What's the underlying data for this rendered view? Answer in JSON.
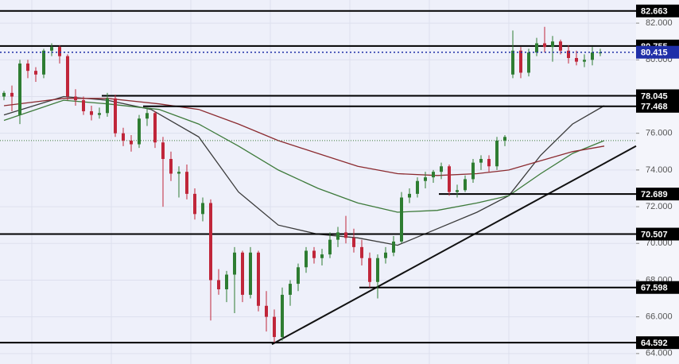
{
  "chart_data": {
    "type": "candlestick",
    "xlim": [
      -0.5,
      79.5
    ],
    "ylim": [
      63.43,
      83.26
    ],
    "yticks": [
      {
        "value": 64,
        "label": "64.000"
      },
      {
        "value": 66,
        "label": "66.000"
      },
      {
        "value": 68,
        "label": "68.000"
      },
      {
        "value": 70,
        "label": "70.000"
      },
      {
        "value": 72,
        "label": "72.000"
      },
      {
        "value": 74,
        "label": "74.000"
      },
      {
        "value": 76,
        "label": "76.000"
      },
      {
        "value": 78,
        "label": "78.000"
      },
      {
        "value": 80,
        "label": "80.000"
      },
      {
        "value": 82,
        "label": "82.000"
      }
    ],
    "grid": true,
    "up_color": "#2e7d32",
    "down_color": "#c0263a",
    "candles": [
      [
        78.0,
        78.3,
        77.8,
        78.2
      ],
      [
        78.2,
        78.6,
        77.2,
        78.0
      ],
      [
        77.0,
        80.0,
        76.5,
        79.8
      ],
      [
        79.8,
        80.0,
        79.0,
        79.4
      ],
      [
        79.4,
        79.6,
        78.8,
        79.2
      ],
      [
        79.2,
        80.6,
        79.0,
        80.5
      ],
      [
        80.5,
        80.9,
        80.2,
        80.7
      ],
      [
        80.7,
        80.8,
        79.8,
        80.2
      ],
      [
        80.2,
        80.3,
        77.8,
        78.0
      ],
      [
        78.0,
        78.4,
        77.5,
        77.8
      ],
      [
        77.8,
        78.0,
        77.0,
        77.2
      ],
      [
        77.2,
        77.5,
        76.7,
        77.0
      ],
      [
        77.0,
        77.4,
        76.8,
        77.1
      ],
      [
        77.1,
        78.2,
        76.9,
        77.9
      ],
      [
        77.9,
        78.1,
        75.8,
        76.0
      ],
      [
        76.0,
        76.3,
        75.3,
        75.6
      ],
      [
        75.6,
        75.9,
        75.0,
        75.4
      ],
      [
        75.4,
        77.0,
        75.2,
        76.8
      ],
      [
        76.8,
        77.4,
        76.4,
        77.1
      ],
      [
        77.1,
        77.2,
        75.2,
        75.5
      ],
      [
        75.5,
        75.8,
        72.0,
        74.6
      ],
      [
        74.6,
        75.0,
        73.4,
        73.8
      ],
      [
        73.8,
        74.2,
        72.5,
        73.9
      ],
      [
        73.9,
        74.3,
        72.4,
        72.7
      ],
      [
        72.7,
        73.0,
        71.3,
        71.6
      ],
      [
        71.6,
        72.5,
        71.2,
        72.2
      ],
      [
        72.2,
        72.4,
        65.8,
        68.0
      ],
      [
        68.0,
        68.6,
        67.2,
        67.5
      ],
      [
        67.5,
        68.5,
        66.8,
        68.3
      ],
      [
        68.3,
        69.8,
        66.2,
        69.5
      ],
      [
        69.5,
        69.6,
        66.8,
        67.2
      ],
      [
        67.2,
        69.8,
        67.0,
        69.5
      ],
      [
        69.5,
        69.6,
        66.3,
        66.6
      ],
      [
        66.6,
        67.4,
        65.2,
        66.0
      ],
      [
        66.0,
        66.4,
        64.6,
        64.9
      ],
      [
        64.9,
        67.6,
        64.7,
        67.2
      ],
      [
        67.2,
        68.0,
        66.6,
        67.8
      ],
      [
        67.8,
        68.9,
        67.4,
        68.7
      ],
      [
        68.7,
        69.8,
        68.4,
        69.6
      ],
      [
        69.6,
        69.8,
        68.9,
        69.2
      ],
      [
        69.2,
        69.7,
        68.8,
        69.4
      ],
      [
        69.4,
        70.6,
        69.2,
        70.2
      ],
      [
        70.2,
        70.9,
        69.8,
        70.6
      ],
      [
        70.6,
        71.5,
        70.0,
        70.3
      ],
      [
        70.3,
        70.8,
        69.5,
        69.8
      ],
      [
        69.8,
        70.2,
        68.8,
        69.2
      ],
      [
        69.2,
        69.5,
        67.6,
        67.9
      ],
      [
        67.9,
        69.4,
        67.0,
        69.2
      ],
      [
        69.2,
        69.8,
        68.9,
        69.5
      ],
      [
        69.5,
        70.4,
        69.3,
        70.1
      ],
      [
        70.1,
        72.8,
        70.0,
        72.5
      ],
      [
        72.5,
        73.0,
        72.2,
        72.7
      ],
      [
        72.7,
        73.6,
        72.5,
        73.4
      ],
      [
        73.4,
        73.9,
        73.0,
        73.6
      ],
      [
        73.6,
        74.0,
        73.3,
        73.9
      ],
      [
        73.9,
        74.4,
        73.5,
        74.2
      ],
      [
        74.2,
        74.3,
        72.6,
        72.8
      ],
      [
        72.8,
        73.2,
        72.5,
        72.9
      ],
      [
        72.9,
        73.7,
        72.8,
        73.5
      ],
      [
        73.5,
        74.6,
        73.3,
        74.4
      ],
      [
        74.4,
        74.8,
        74.0,
        74.6
      ],
      [
        74.6,
        74.8,
        73.9,
        74.2
      ],
      [
        74.2,
        75.8,
        74.0,
        75.6
      ],
      [
        75.6,
        75.9,
        75.3,
        75.8
      ],
      [
        79.2,
        81.6,
        79.0,
        80.5
      ],
      [
        80.5,
        80.7,
        79.0,
        79.3
      ],
      [
        79.3,
        80.6,
        79.1,
        80.4
      ],
      [
        80.4,
        81.2,
        80.2,
        80.9
      ],
      [
        80.9,
        81.8,
        80.4,
        80.7
      ],
      [
        80.7,
        81.3,
        79.9,
        81.0
      ],
      [
        81.0,
        81.1,
        80.3,
        80.5
      ],
      [
        80.5,
        80.8,
        79.8,
        80.1
      ],
      [
        80.1,
        80.5,
        79.7,
        79.9
      ],
      [
        79.9,
        80.3,
        79.6,
        80.0
      ],
      [
        80.0,
        80.7,
        79.7,
        80.4
      ],
      [
        80.4,
        80.6,
        80.2,
        80.4
      ]
    ],
    "series": [
      {
        "color": "#3a3a3a",
        "x": [
          0,
          7.5,
          13,
          18.5,
          24.5,
          29.5,
          34.5,
          39.5,
          44.5,
          49.5,
          54.5,
          59.5,
          63.5,
          67.5,
          71.5,
          75.5
        ],
        "values": [
          77.0,
          78.0,
          77.8,
          77.3,
          75.8,
          72.8,
          71.0,
          70.5,
          70.3,
          69.9,
          70.8,
          71.7,
          72.6,
          74.8,
          76.5,
          77.5
        ]
      },
      {
        "color": "#3d7a3a",
        "x": [
          0,
          7.5,
          13,
          19.5,
          24.5,
          29.5,
          34.5,
          39.5,
          44.5,
          49.5,
          54.5,
          59.5,
          63.5,
          67.5,
          71.5,
          75.5
        ],
        "values": [
          76.7,
          77.8,
          77.6,
          77.3,
          76.5,
          75.3,
          74.0,
          73.0,
          72.2,
          71.7,
          71.8,
          72.2,
          72.6,
          73.8,
          74.9,
          75.6
        ]
      },
      {
        "color": "#8b2a2f",
        "x": [
          0,
          7.5,
          13,
          19.5,
          24.5,
          29.5,
          34.5,
          39.5,
          44.5,
          49.5,
          54.5,
          59.5,
          63.5,
          67.5,
          71.5,
          75.5
        ],
        "values": [
          77.5,
          77.9,
          77.9,
          77.6,
          77.3,
          76.5,
          75.6,
          74.9,
          74.2,
          73.8,
          73.7,
          73.8,
          74.0,
          74.5,
          75.0,
          75.3
        ]
      }
    ],
    "trendline": {
      "x": [
        33.7,
        79.5
      ],
      "values": [
        64.5,
        75.3
      ]
    },
    "levels": [
      {
        "value": 82.663,
        "from": -0.5
      },
      {
        "value": 80.755,
        "from": -0.5
      },
      {
        "value": 78.045,
        "from": 12.3
      },
      {
        "value": 77.468,
        "from": 17.5
      },
      {
        "value": 72.689,
        "from": 54.7
      },
      {
        "value": 70.507,
        "from": -0.5
      },
      {
        "value": 67.598,
        "from": 44.7
      },
      {
        "value": 64.592,
        "from": -0.5
      }
    ],
    "current_price": {
      "value": 80.415,
      "color": "#1f2fa8"
    },
    "dotted_level": {
      "value": 75.6,
      "color": "#3d7a3a"
    }
  }
}
